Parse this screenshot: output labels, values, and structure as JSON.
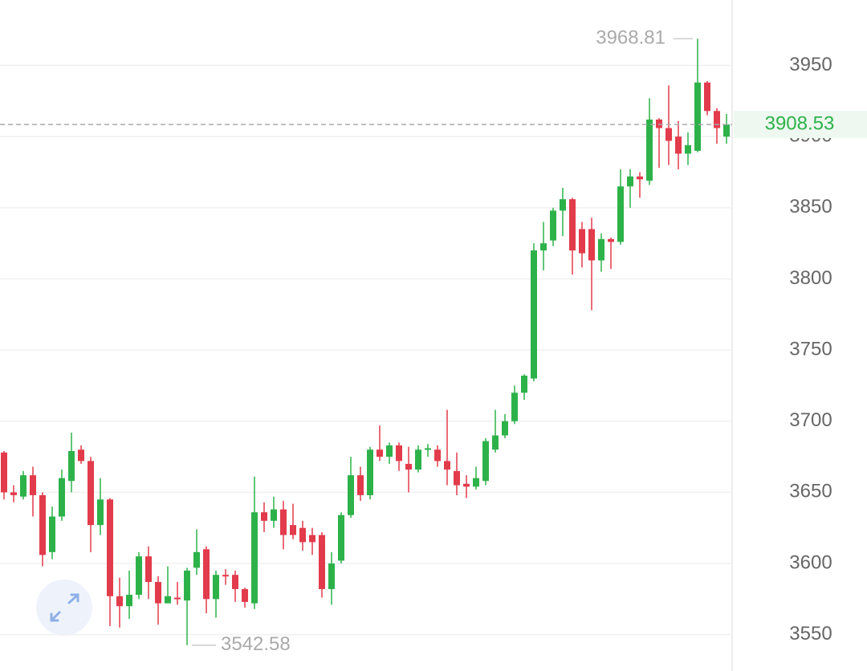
{
  "chart_data": {
    "type": "candlestick",
    "up_color": "#2db24a",
    "down_color": "#e23b4b",
    "ylim": [
      3525,
      3996
    ],
    "yticks": [
      3550,
      3600,
      3650,
      3700,
      3750,
      3800,
      3850,
      3900,
      3950
    ],
    "grid": true,
    "open": [
      3678,
      3650,
      3647,
      3662,
      3648,
      3608,
      3633,
      3658,
      3680,
      3672,
      3627,
      3645,
      3577,
      3570,
      3578,
      3605,
      3587,
      3572,
      3576,
      3574,
      3597,
      3610,
      3575,
      3592,
      3592,
      3582,
      3572,
      3636,
      3630,
      3638,
      3627,
      3625,
      3620,
      3620,
      3582,
      3602,
      3634,
      3662,
      3648,
      3680,
      3675,
      3683,
      3670,
      3666,
      3680,
      3680,
      3672,
      3665,
      3656,
      3654,
      3658,
      3680,
      3690,
      3700,
      3720,
      3730,
      3820,
      3827,
      3848,
      3856,
      3835,
      3835,
      3813,
      3828,
      3826,
      3865,
      3872,
      3869,
      3912,
      3906,
      3900,
      3888,
      3890,
      3938,
      3918,
      3900
    ],
    "high": [
      3679,
      3655,
      3665,
      3668,
      3650,
      3640,
      3666,
      3692,
      3683,
      3675,
      3660,
      3646,
      3590,
      3595,
      3608,
      3612,
      3591,
      3598,
      3587,
      3597,
      3624,
      3612,
      3595,
      3596,
      3595,
      3583,
      3661,
      3643,
      3647,
      3644,
      3642,
      3630,
      3625,
      3622,
      3608,
      3636,
      3675,
      3668,
      3682,
      3697,
      3685,
      3685,
      3682,
      3683,
      3684,
      3683,
      3708,
      3678,
      3662,
      3668,
      3688,
      3708,
      3705,
      3725,
      3733,
      3825,
      3840,
      3850,
      3864,
      3857,
      3840,
      3843,
      3832,
      3829,
      3877,
      3877,
      3875,
      3927,
      3913,
      3936,
      3911,
      3903,
      3968.81,
      3939,
      3920,
      3916
    ],
    "low": [
      3645,
      3643,
      3645,
      3633,
      3598,
      3603,
      3630,
      3650,
      3670,
      3608,
      3620,
      3556,
      3555,
      3561,
      3575,
      3575,
      3557,
      3572,
      3571,
      3542.58,
      3592,
      3565,
      3562,
      3585,
      3573,
      3569,
      3568,
      3622,
      3625,
      3610,
      3617,
      3609,
      3606,
      3576,
      3571,
      3600,
      3632,
      3644,
      3645,
      3672,
      3670,
      3665,
      3650,
      3664,
      3675,
      3668,
      3655,
      3648,
      3646,
      3652,
      3655,
      3678,
      3688,
      3698,
      3715,
      3728,
      3806,
      3823,
      3830,
      3803,
      3808,
      3778,
      3805,
      3807,
      3824,
      3850,
      3857,
      3866,
      3878,
      3880,
      3877,
      3880,
      3889,
      3915,
      3895,
      3895
    ],
    "close": [
      3650,
      3648,
      3662,
      3648,
      3606,
      3633,
      3660,
      3679,
      3672,
      3627,
      3645,
      3577,
      3570,
      3578,
      3605,
      3587,
      3572,
      3577,
      3575,
      3595,
      3608,
      3575,
      3592,
      3591,
      3582,
      3573,
      3636,
      3630,
      3638,
      3620,
      3620,
      3615,
      3615,
      3582,
      3600,
      3634,
      3662,
      3648,
      3680,
      3675,
      3683,
      3672,
      3666,
      3680,
      3681,
      3672,
      3666,
      3655,
      3654,
      3660,
      3686,
      3690,
      3700,
      3720,
      3732,
      3820,
      3825,
      3848,
      3856,
      3820,
      3818,
      3813,
      3828,
      3826,
      3865,
      3872,
      3870,
      3912,
      3906,
      3897,
      3888,
      3894,
      3938,
      3918,
      3906,
      3908.53
    ]
  }
}
